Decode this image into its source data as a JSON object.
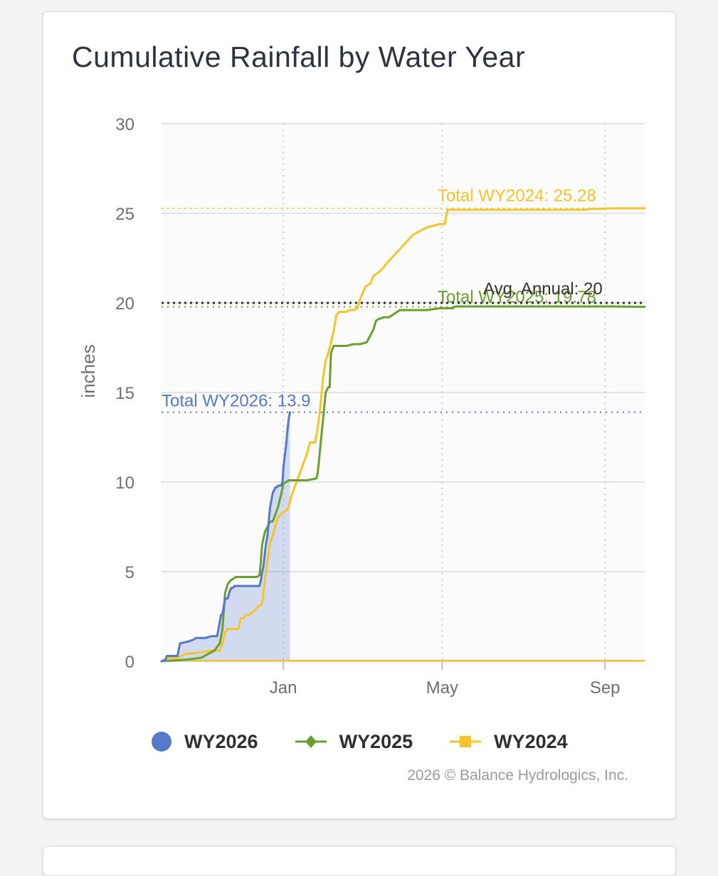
{
  "card": {
    "title": "Cumulative Rainfall by Water Year",
    "credit": "2026 © Balance Hydrologics, Inc."
  },
  "chart_data": {
    "type": "line",
    "title": "Cumulative Rainfall by Water Year",
    "xlabel": "",
    "ylabel": "inches",
    "x_unit": "days since Oct 1",
    "xlim": [
      0,
      365
    ],
    "ylim": [
      0,
      30
    ],
    "y_ticks": [
      0,
      5,
      10,
      15,
      20,
      25,
      30
    ],
    "x_ticks": [
      {
        "label": "Jan",
        "x": 92
      },
      {
        "label": "May",
        "x": 212
      },
      {
        "label": "Sep",
        "x": 335
      }
    ],
    "grid": true,
    "legend": "bottom",
    "series": [
      {
        "name": "WY2026",
        "color": "#5578c9",
        "marker": "circle",
        "area": true,
        "x": [
          0,
          3,
          4,
          12,
          14,
          20,
          24,
          26,
          33,
          38,
          42,
          45,
          46,
          48,
          50,
          51,
          52,
          53,
          54,
          55,
          56,
          57,
          58,
          62,
          66,
          68,
          70,
          72,
          74,
          75,
          76,
          77,
          78,
          79,
          80,
          81,
          82,
          84,
          86,
          87,
          88,
          89,
          90,
          91,
          91.5,
          92,
          93,
          94,
          95,
          96,
          97
        ],
        "y": [
          0,
          0.1,
          0.3,
          0.3,
          1.0,
          1.1,
          1.2,
          1.3,
          1.3,
          1.4,
          1.4,
          2.6,
          2.6,
          3.5,
          3.5,
          3.8,
          4.0,
          4.1,
          4.1,
          4.2,
          4.2,
          4.2,
          4.2,
          4.2,
          4.2,
          4.2,
          4.2,
          4.2,
          4.2,
          4.5,
          5.0,
          5.3,
          6.0,
          6.6,
          7.0,
          7.8,
          8.6,
          9.4,
          9.7,
          9.7,
          9.8,
          9.8,
          9.8,
          9.9,
          10.1,
          10.8,
          11.4,
          12.0,
          12.8,
          13.5,
          13.9
        ]
      },
      {
        "name": "WY2025",
        "color": "#6a9e2e",
        "marker": "diamond",
        "x": [
          0,
          20,
          30,
          40,
          44,
          46,
          47,
          48,
          50,
          52,
          54,
          56,
          58,
          60,
          62,
          66,
          70,
          72,
          74,
          75,
          76,
          78,
          80,
          82,
          84,
          86,
          88,
          90,
          92,
          94,
          96,
          100,
          110,
          117,
          118,
          120,
          124,
          126,
          127,
          128,
          130,
          132,
          135,
          138,
          140,
          145,
          150,
          155,
          160,
          162,
          164,
          168,
          172,
          176,
          180,
          185,
          190,
          200,
          210,
          215,
          220,
          222,
          230,
          240,
          250,
          260,
          280,
          300,
          320,
          340,
          365
        ],
        "y": [
          0,
          0.1,
          0.2,
          0.6,
          1.0,
          1.8,
          2.8,
          3.8,
          4.3,
          4.5,
          4.6,
          4.7,
          4.7,
          4.7,
          4.7,
          4.7,
          4.7,
          4.7,
          4.8,
          5.5,
          6.5,
          7.2,
          7.5,
          7.8,
          7.8,
          8.2,
          8.6,
          9.2,
          9.9,
          10.0,
          10.1,
          10.1,
          10.1,
          10.2,
          10.5,
          12.0,
          15.0,
          15.3,
          15.3,
          17.2,
          17.6,
          17.6,
          17.6,
          17.6,
          17.6,
          17.7,
          17.7,
          17.8,
          18.5,
          19.0,
          19.1,
          19.2,
          19.2,
          19.4,
          19.6,
          19.6,
          19.6,
          19.6,
          19.7,
          19.7,
          19.7,
          19.8,
          19.8,
          19.8,
          19.8,
          19.8,
          19.8,
          19.8,
          19.8,
          19.8,
          19.78
        ]
      },
      {
        "name": "WY2024",
        "color": "#f5c32c",
        "marker": "square",
        "x": [
          0,
          6,
          12,
          18,
          30,
          38,
          44,
          46,
          48,
          50,
          54,
          58,
          60,
          62,
          64,
          66,
          70,
          72,
          76,
          78,
          80,
          82,
          84,
          86,
          88,
          90,
          92,
          94,
          96,
          98,
          100,
          102,
          104,
          106,
          108,
          110,
          112,
          116,
          118,
          120,
          122,
          124,
          126,
          128,
          130,
          132,
          134,
          136,
          140,
          142,
          145,
          148,
          150,
          154,
          158,
          160,
          164,
          168,
          170,
          175,
          180,
          185,
          190,
          195,
          200,
          205,
          210,
          214,
          216,
          220,
          230,
          240,
          250,
          260,
          270,
          280,
          290,
          300,
          310,
          320,
          325,
          330,
          340,
          350,
          365
        ],
        "y": [
          0,
          0.2,
          0.2,
          0.4,
          0.5,
          0.6,
          0.6,
          1.0,
          1.6,
          1.8,
          1.8,
          1.8,
          2.4,
          2.4,
          2.6,
          2.6,
          2.8,
          3.0,
          3.2,
          4.5,
          5.6,
          6.6,
          7.0,
          7.6,
          8.0,
          8.2,
          8.3,
          8.4,
          8.6,
          9.2,
          9.6,
          10.0,
          10.4,
          10.8,
          11.2,
          11.6,
          12.2,
          12.2,
          13.0,
          14.2,
          15.8,
          16.8,
          17.2,
          17.8,
          18.4,
          19.3,
          19.5,
          19.5,
          19.5,
          19.6,
          19.6,
          19.7,
          20.2,
          20.9,
          21.1,
          21.5,
          21.7,
          22.0,
          22.2,
          22.6,
          23.0,
          23.4,
          23.8,
          24.0,
          24.2,
          24.3,
          24.4,
          24.4,
          25.2,
          25.2,
          25.2,
          25.2,
          25.2,
          25.2,
          25.2,
          25.2,
          25.2,
          25.2,
          25.2,
          25.2,
          25.25,
          25.25,
          25.28,
          25.28,
          25.28
        ]
      }
    ],
    "reference_lines": [
      {
        "label": "Total WY2024: 25.28",
        "value": 25.28,
        "color": "#f5c32c",
        "style": "dotted"
      },
      {
        "label": "Total WY2025: 19.78",
        "value": 19.78,
        "color": "#6a9e2e",
        "style": "dotted"
      },
      {
        "label": "Avg. Annual: 20",
        "value": 20,
        "color": "#333333",
        "style": "dotted"
      },
      {
        "label": "Total WY2026: 13.9",
        "value": 13.9,
        "color": "#5578c9",
        "style": "dotted"
      }
    ]
  }
}
